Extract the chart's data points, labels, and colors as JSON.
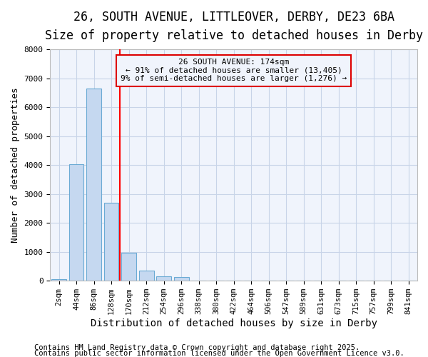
{
  "title1": "26, SOUTH AVENUE, LITTLEOVER, DERBY, DE23 6BA",
  "title2": "Size of property relative to detached houses in Derby",
  "xlabel": "Distribution of detached houses by size in Derby",
  "ylabel": "Number of detached properties",
  "categories": [
    "2sqm",
    "44sqm",
    "86sqm",
    "128sqm",
    "170sqm",
    "212sqm",
    "254sqm",
    "296sqm",
    "338sqm",
    "380sqm",
    "422sqm",
    "464sqm",
    "506sqm",
    "547sqm",
    "589sqm",
    "631sqm",
    "673sqm",
    "715sqm",
    "757sqm",
    "799sqm",
    "841sqm"
  ],
  "values": [
    50,
    4020,
    6640,
    2700,
    980,
    350,
    150,
    120,
    0,
    0,
    0,
    0,
    0,
    0,
    0,
    0,
    0,
    0,
    0,
    0,
    0
  ],
  "bar_color": "#c5d8f0",
  "bar_edge_color": "#6aaad4",
  "grid_color": "#c8d4e8",
  "background_color": "#ffffff",
  "plot_bg_color": "#f0f4fc",
  "red_line_x": 3.5,
  "annotation_text": "26 SOUTH AVENUE: 174sqm\n← 91% of detached houses are smaller (13,405)\n9% of semi-detached houses are larger (1,276) →",
  "annotation_box_color": "#dd0000",
  "ylim": [
    0,
    8000
  ],
  "yticks": [
    0,
    1000,
    2000,
    3000,
    4000,
    5000,
    6000,
    7000,
    8000
  ],
  "footnote1": "Contains HM Land Registry data © Crown copyright and database right 2025.",
  "footnote2": "Contains public sector information licensed under the Open Government Licence v3.0.",
  "title1_fontsize": 12,
  "title2_fontsize": 10,
  "annot_fontsize": 8,
  "footnote_fontsize": 7.5,
  "ylabel_fontsize": 9,
  "xlabel_fontsize": 10
}
